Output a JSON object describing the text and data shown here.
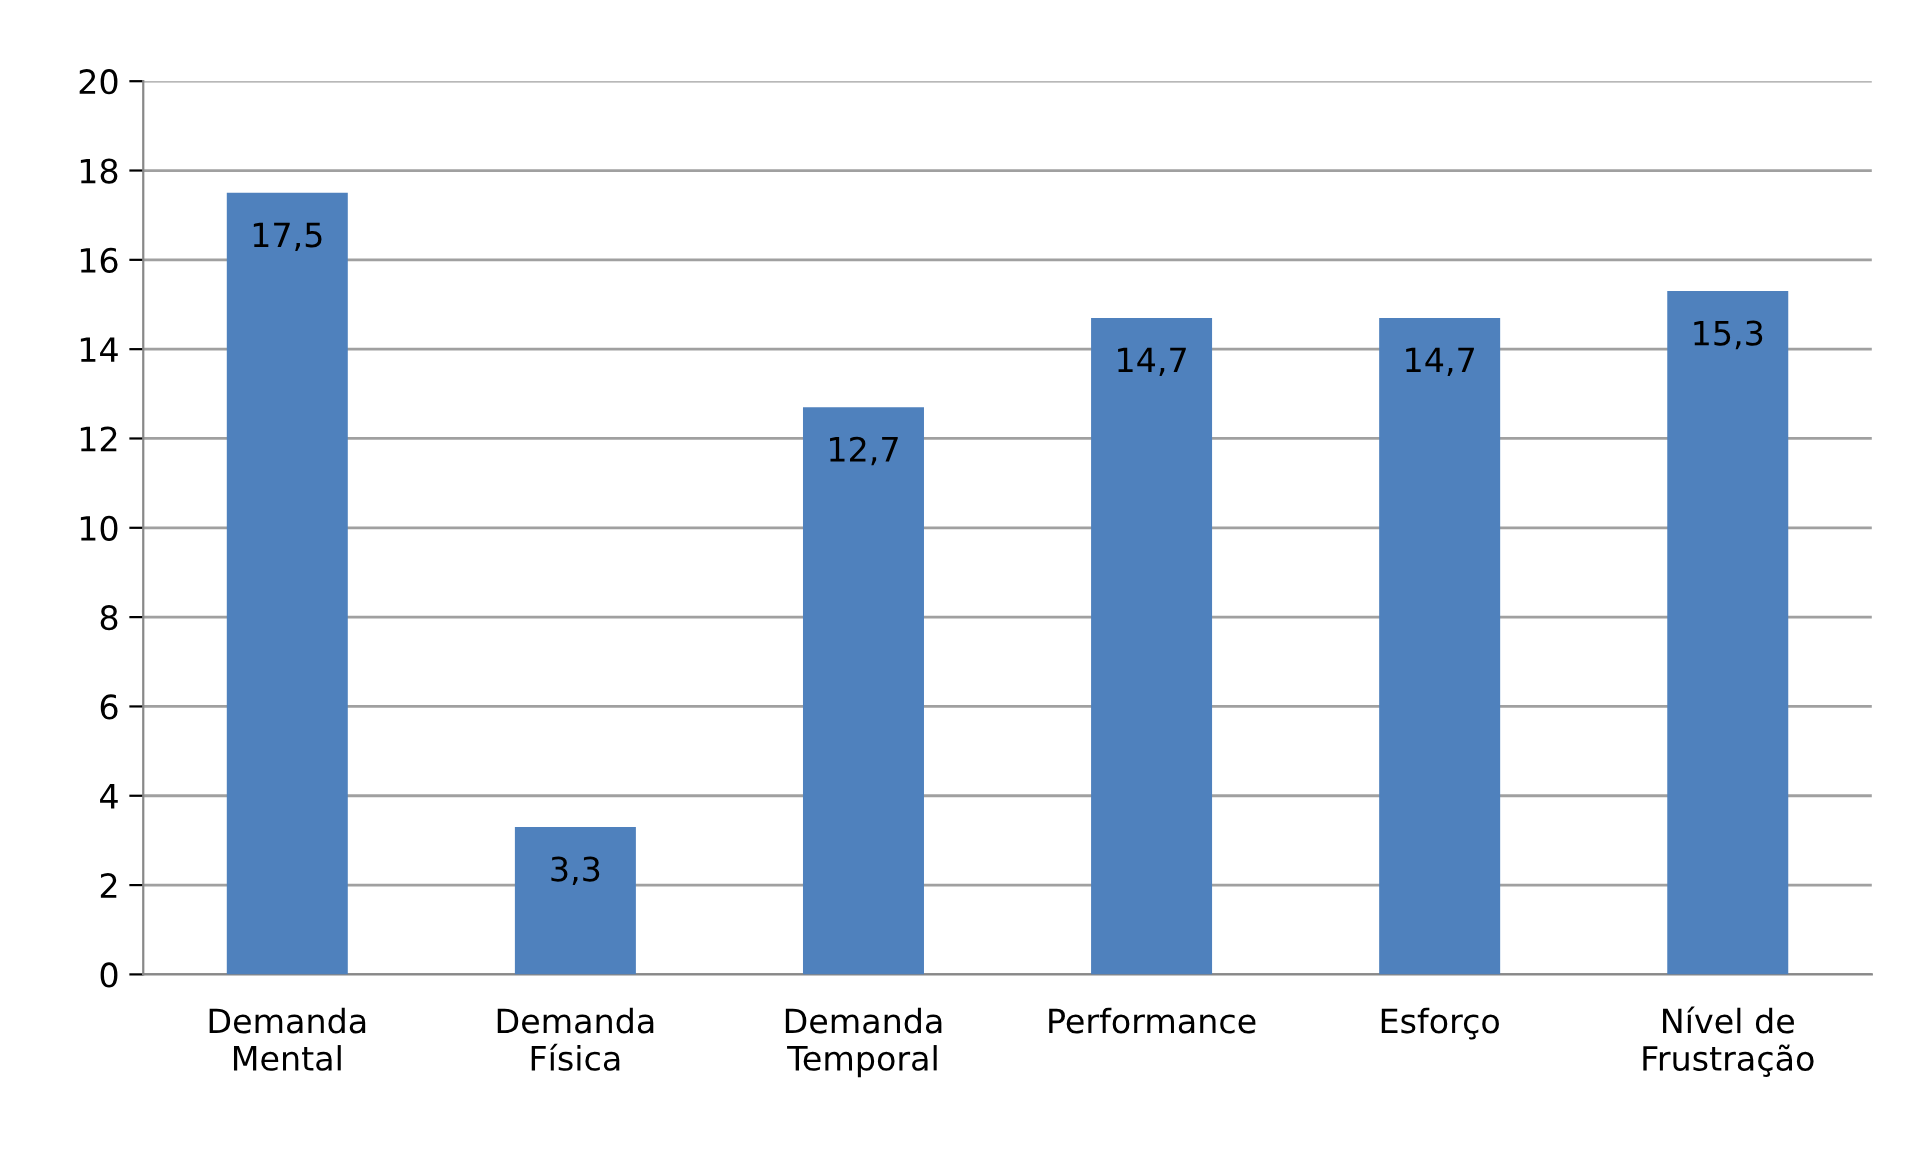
{
  "chart_data": {
    "type": "bar",
    "categories": [
      "Demanda\nMental",
      "Demanda\nFísica",
      "Demanda\nTemporal",
      "Performance",
      "Esforço",
      "Nível de\nFrustração"
    ],
    "values": [
      17.5,
      3.3,
      12.7,
      14.7,
      14.7,
      15.3
    ],
    "value_labels": [
      "17,5",
      "3,3",
      "12,7",
      "14,7",
      "14,7",
      "15,3"
    ],
    "color": "#4f81bd",
    "ylim": [
      0,
      20
    ],
    "yticks": [
      0,
      2,
      4,
      6,
      8,
      10,
      12,
      14,
      16,
      18,
      20
    ],
    "grid": "y",
    "legend": false
  }
}
